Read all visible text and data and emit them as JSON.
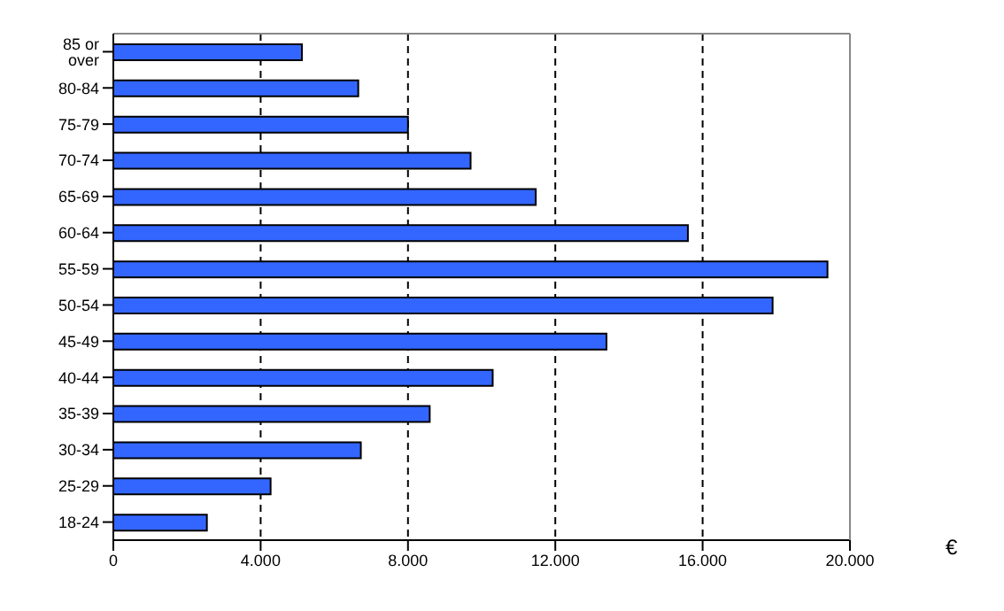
{
  "chart_data": {
    "type": "bar",
    "orientation": "horizontal",
    "xlabel": "€",
    "categories": [
      "85 or over",
      "80-84",
      "75-79",
      "70-74",
      "65-69",
      "60-64",
      "55-59",
      "50-54",
      "45-49",
      "40-44",
      "35-39",
      "30-34",
      "25-29",
      "18-24"
    ],
    "values": [
      5120,
      6650,
      8000,
      9700,
      11470,
      15600,
      19390,
      17900,
      13390,
      10300,
      8590,
      6720,
      4270,
      2540
    ],
    "color": "#3366ff",
    "xlim": [
      0,
      20000
    ],
    "xticks": [
      0,
      {
        "value": 4000,
        "label": "4.000"
      },
      {
        "value": 8000,
        "label": "8.000"
      },
      {
        "value": 12000,
        "label": "12.000"
      },
      {
        "value": 16000,
        "label": "16.000"
      },
      {
        "value": 20000,
        "label": "20.000"
      }
    ],
    "grid": "x"
  }
}
